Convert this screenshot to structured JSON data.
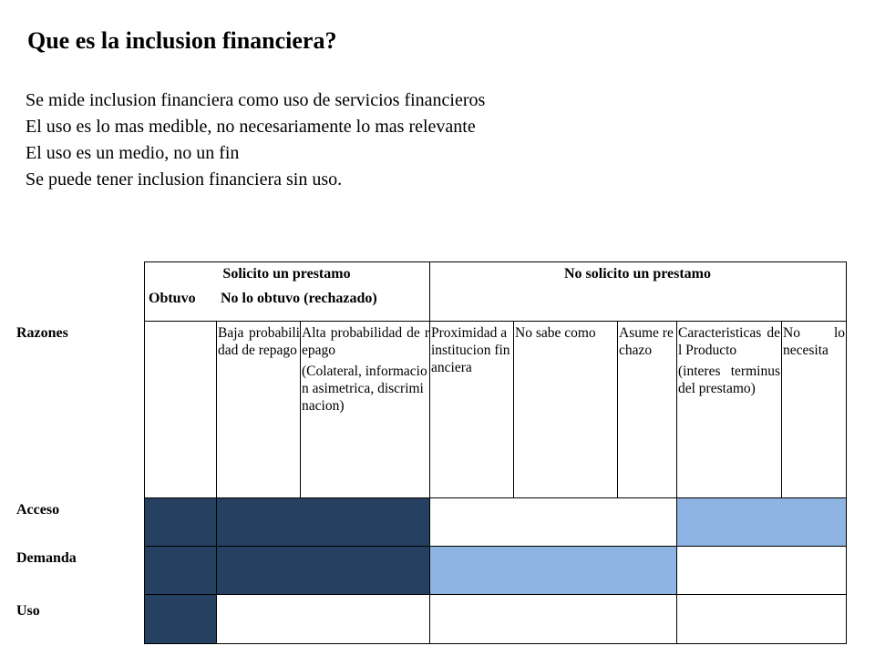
{
  "title": "Que es la inclusion financiera?",
  "bullets": [
    "Se mide inclusion financiera como uso de servicios financieros",
    "El uso es lo mas medible, no necesariamente lo mas relevante",
    "El uso es un medio, no un fin",
    "Se puede tener inclusion financiera sin uso."
  ],
  "table": {
    "header_solicito": "Solicito un prestamo",
    "header_obtuvo": "Obtuvo",
    "header_no_obtuvo": "No lo obtuvo (rechazado)",
    "header_no_solicito": "No solicito un prestamo",
    "row_razones": "Razones",
    "reasons": {
      "baja_probabilidad": "Baja probabilidad de repago",
      "alta_probabilidad": "Alta probabilidad de repago",
      "alta_probabilidad_detail": "(Colateral, informacion asimetrica, discriminacion)",
      "proximidad": "Proximidad a institucion financiera",
      "no_sabe": "No sabe como",
      "asume_rechazo": "Asume rechazo",
      "caracteristicas": "Caracteristicas del Producto",
      "caracteristicas_detail": "(interes terminus del prestamo)",
      "no_necesita": "No lo necesita"
    },
    "rows": {
      "acceso": "Acceso",
      "demanda": "Demanda",
      "uso": "Uso"
    },
    "colors": {
      "dark": "#264061",
      "light": "#8eb4e3",
      "white": "#ffffff"
    }
  }
}
